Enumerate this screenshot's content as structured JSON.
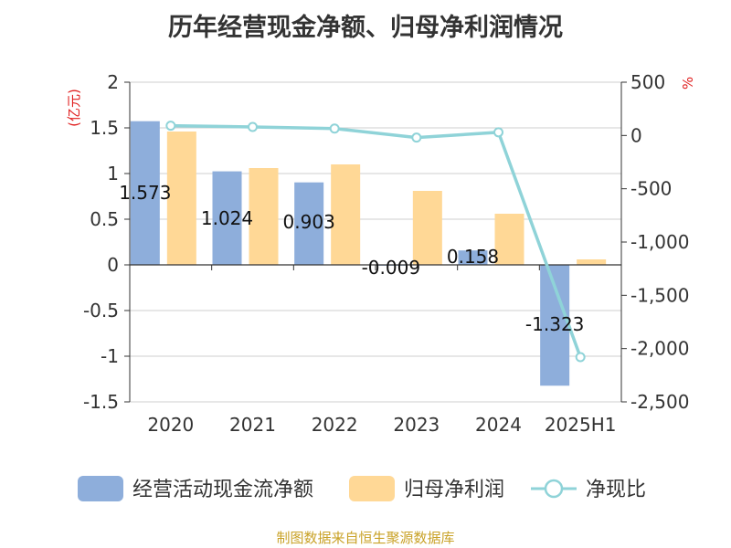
{
  "title": "历年经营现金净额、归母净利润情况",
  "source": "制图数据来自恒生聚源数据库",
  "chart_data": {
    "type": "bar",
    "categories": [
      "2020",
      "2021",
      "2022",
      "2023",
      "2024",
      "2025H1"
    ],
    "left_unit": "(亿元)",
    "right_unit": "%",
    "left_ylim": [
      -1.5,
      2
    ],
    "left_ticks": [
      "2",
      "1.5",
      "1",
      "0.5",
      "0",
      "-0.5",
      "-1",
      "-1.5"
    ],
    "left_tick_values": [
      2,
      1.5,
      1,
      0.5,
      0,
      -0.5,
      -1,
      -1.5
    ],
    "right_ylim": [
      -2500,
      500
    ],
    "right_ticks": [
      "500",
      "0",
      "-500",
      "-1,000",
      "-1,500",
      "-2,000",
      "-2,500"
    ],
    "right_tick_values": [
      500,
      0,
      -500,
      -1000,
      -1500,
      -2000,
      -2500
    ],
    "series": [
      {
        "name": "经营活动现金流净额",
        "kind": "bar",
        "axis": "left",
        "color": "#8eaedb",
        "values": [
          1.573,
          1.024,
          0.903,
          -0.009,
          0.158,
          -1.323
        ],
        "labels": [
          "1.573",
          "1.024",
          "0.903",
          "-0.009",
          "0.158",
          "-1.323"
        ]
      },
      {
        "name": "归母净利润",
        "kind": "bar",
        "axis": "left",
        "color": "#ffd896",
        "values": [
          1.46,
          1.06,
          1.1,
          0.81,
          0.56,
          0.06
        ]
      },
      {
        "name": "净现比",
        "kind": "line",
        "axis": "right",
        "color": "#8fd3d8",
        "values": [
          92,
          80,
          65,
          -20,
          30,
          -2080
        ]
      }
    ]
  }
}
